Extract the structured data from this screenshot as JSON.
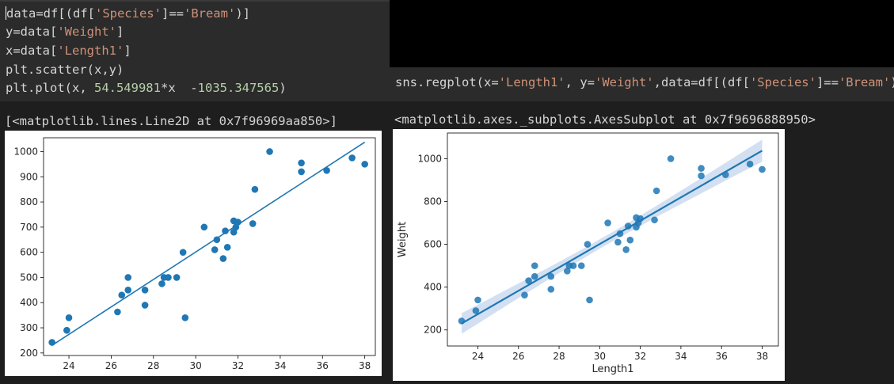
{
  "cell1": {
    "line1_prefix": "data=df[(df[",
    "line1_str1": "'Species'",
    "line1_mid": "]==",
    "line1_str2": "'Bream'",
    "line1_suffix": ")]",
    "line2_prefix": "y=data[",
    "line2_str": "'Weight'",
    "line2_suffix": "]",
    "line3_prefix": "x=data[",
    "line3_str": "'Length1'",
    "line3_suffix": "]",
    "line4": "plt.scatter(x,y)",
    "line5_prefix": "plt.plot(x, ",
    "line5_num1": "54.549981",
    "line5_mid": "*x  -",
    "line5_num2": "1035.347565",
    "line5_suffix": ")"
  },
  "cell2": {
    "prefix": "sns.regplot(x=",
    "str1": "'Length1'",
    "mid1": ", y=",
    "str2": "'Weight'",
    "mid2": ",data=df[(df[",
    "str3": "'Species'",
    "mid3": "]==",
    "str4": "'Bream'",
    "suffix": ")])"
  },
  "output_left": "[<matplotlib.lines.Line2D at 0x7f96969aa850>]",
  "output_right": "<matplotlib.axes._subplots.AxesSubplot at 0x7f9696888950>",
  "chart_data": [
    {
      "type": "scatter",
      "title": "",
      "xlabel": "",
      "ylabel": "",
      "xlim": [
        22.8,
        38.5
      ],
      "ylim": [
        190,
        1055
      ],
      "xticks": [
        24,
        26,
        28,
        30,
        32,
        34,
        36,
        38
      ],
      "yticks": [
        200,
        300,
        400,
        500,
        600,
        700,
        800,
        900,
        1000
      ],
      "points": [
        [
          23.2,
          242
        ],
        [
          24.0,
          340
        ],
        [
          23.9,
          290
        ],
        [
          26.3,
          363
        ],
        [
          26.5,
          430
        ],
        [
          26.8,
          450
        ],
        [
          26.8,
          500
        ],
        [
          27.6,
          390
        ],
        [
          27.6,
          450
        ],
        [
          28.5,
          500
        ],
        [
          28.4,
          475
        ],
        [
          28.7,
          500
        ],
        [
          29.1,
          500
        ],
        [
          29.5,
          340
        ],
        [
          29.4,
          600
        ],
        [
          30.4,
          700
        ],
        [
          30.9,
          610
        ],
        [
          31.0,
          650
        ],
        [
          31.3,
          575
        ],
        [
          31.4,
          685
        ],
        [
          31.5,
          620
        ],
        [
          31.8,
          680
        ],
        [
          31.9,
          700
        ],
        [
          31.8,
          725
        ],
        [
          32.0,
          720
        ],
        [
          32.7,
          714
        ],
        [
          32.8,
          850
        ],
        [
          33.5,
          1000
        ],
        [
          35.0,
          920
        ],
        [
          35.0,
          955
        ],
        [
          36.2,
          925
        ],
        [
          37.4,
          975
        ],
        [
          38.0,
          950
        ]
      ],
      "line": {
        "slope": 54.549981,
        "intercept": -1035.347565,
        "x_range": [
          23.2,
          38.0
        ]
      },
      "colors": {
        "point": "#1f77b4",
        "line": "#1f77b4"
      }
    },
    {
      "type": "scatter",
      "title": "",
      "xlabel": "Length1",
      "ylabel": "Weight",
      "xlim": [
        22.5,
        38.8
      ],
      "ylim": [
        125,
        1120
      ],
      "xticks": [
        24,
        26,
        28,
        30,
        32,
        34,
        36,
        38
      ],
      "yticks": [
        200,
        400,
        600,
        800,
        1000
      ],
      "points": [
        [
          23.2,
          242
        ],
        [
          24.0,
          340
        ],
        [
          23.9,
          290
        ],
        [
          26.3,
          363
        ],
        [
          26.5,
          430
        ],
        [
          26.8,
          450
        ],
        [
          26.8,
          500
        ],
        [
          27.6,
          390
        ],
        [
          27.6,
          450
        ],
        [
          28.5,
          500
        ],
        [
          28.4,
          475
        ],
        [
          28.7,
          500
        ],
        [
          29.1,
          500
        ],
        [
          29.5,
          340
        ],
        [
          29.4,
          600
        ],
        [
          30.4,
          700
        ],
        [
          30.9,
          610
        ],
        [
          31.0,
          650
        ],
        [
          31.3,
          575
        ],
        [
          31.4,
          685
        ],
        [
          31.5,
          620
        ],
        [
          31.8,
          680
        ],
        [
          31.9,
          700
        ],
        [
          31.8,
          725
        ],
        [
          32.0,
          720
        ],
        [
          32.7,
          714
        ],
        [
          32.8,
          850
        ],
        [
          33.5,
          1000
        ],
        [
          35.0,
          920
        ],
        [
          35.0,
          955
        ],
        [
          36.2,
          925
        ],
        [
          37.4,
          975
        ],
        [
          38.0,
          950
        ]
      ],
      "line": {
        "slope": 54.549981,
        "intercept": -1035.347565,
        "x_range": [
          23.2,
          38.0
        ]
      },
      "confidence_band": true,
      "colors": {
        "point": "#1f77b4",
        "line": "#1f77b4",
        "band": "#aec7e8"
      }
    }
  ]
}
